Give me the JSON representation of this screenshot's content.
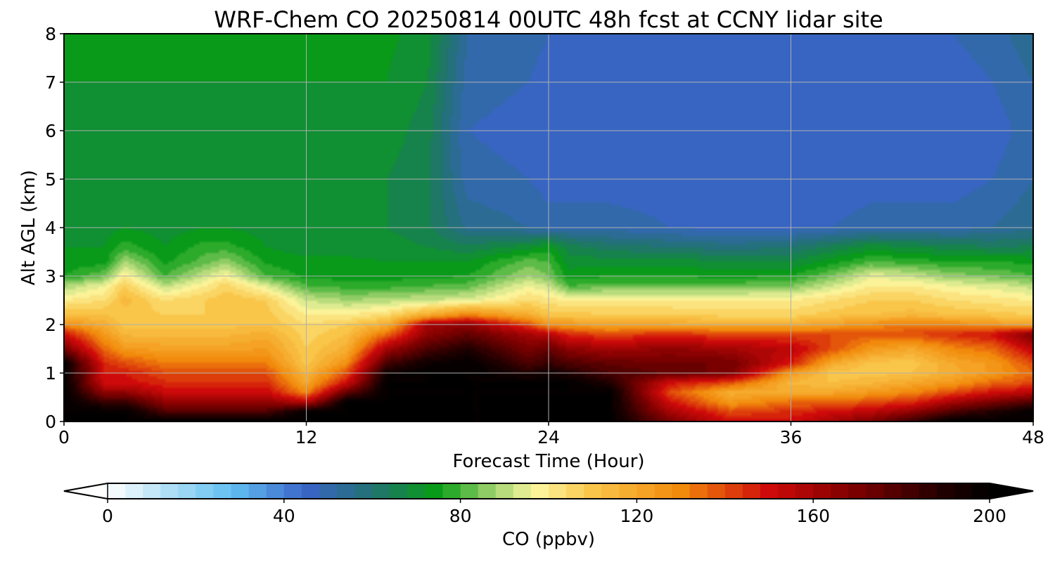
{
  "chart_data": {
    "type": "heatmap",
    "title": "WRF-Chem CO  20250814 00UTC 48h fcst at CCNY lidar site",
    "xlabel": "Forecast Time (Hour)",
    "ylabel": "Alt AGL (km)",
    "xlim": [
      0,
      48
    ],
    "ylim": [
      0,
      8
    ],
    "xticks": [
      0,
      12,
      24,
      36,
      48
    ],
    "yticks": [
      0,
      1,
      2,
      3,
      4,
      5,
      6,
      7,
      8
    ],
    "grid": true,
    "colorbar": {
      "label": "CO  (ppbv)",
      "range": [
        0,
        200
      ],
      "ticks": [
        0,
        40,
        80,
        120,
        160,
        200
      ],
      "extend": "both",
      "stops": [
        {
          "v": 0,
          "color": "#ffffff"
        },
        {
          "v": 15,
          "color": "#a8dcf5"
        },
        {
          "v": 28,
          "color": "#62c0f2"
        },
        {
          "v": 45,
          "color": "#3a64c8"
        },
        {
          "v": 60,
          "color": "#227272"
        },
        {
          "v": 75,
          "color": "#079d14"
        },
        {
          "v": 87,
          "color": "#9bd06c"
        },
        {
          "v": 97,
          "color": "#fcf7a0"
        },
        {
          "v": 110,
          "color": "#f9c64a"
        },
        {
          "v": 130,
          "color": "#f28a0c"
        },
        {
          "v": 150,
          "color": "#cf0a0a"
        },
        {
          "v": 170,
          "color": "#7a0000"
        },
        {
          "v": 190,
          "color": "#1e0000"
        },
        {
          "v": 200,
          "color": "#000000"
        }
      ]
    },
    "x": [
      0,
      2,
      3,
      5,
      7,
      8,
      10,
      12,
      14,
      16,
      18,
      20,
      23,
      24,
      25,
      27,
      30,
      33,
      36,
      38,
      40,
      42,
      44,
      46,
      48
    ],
    "y": [
      0,
      0.2,
      0.4,
      0.6,
      0.8,
      1.0,
      1.2,
      1.5,
      1.8,
      2.0,
      2.2,
      2.5,
      2.8,
      3.0,
      3.3,
      3.6,
      4.0,
      5.0,
      6.0,
      7.0,
      8.0
    ],
    "series": [
      {
        "name": "",
        "values": [
          [
            200,
            200,
            200,
            200,
            200,
            200,
            200,
            170,
            150,
            128,
            112,
            100,
            88,
            76,
            73,
            72,
            70,
            68,
            70,
            72,
            73
          ],
          [
            200,
            200,
            185,
            165,
            150,
            148,
            145,
            135,
            125,
            118,
            112,
            104,
            96,
            84,
            74,
            72,
            70,
            68,
            70,
            72,
            73
          ],
          [
            200,
            200,
            185,
            165,
            150,
            148,
            140,
            125,
            115,
            110,
            110,
            114,
            108,
            100,
            88,
            78,
            72,
            70,
            70,
            72,
            73
          ],
          [
            200,
            180,
            165,
            152,
            145,
            140,
            132,
            122,
            115,
            110,
            108,
            104,
            90,
            80,
            75,
            72,
            70,
            68,
            70,
            72,
            73
          ],
          [
            200,
            180,
            165,
            152,
            145,
            140,
            132,
            122,
            115,
            110,
            108,
            108,
            100,
            92,
            82,
            78,
            72,
            70,
            70,
            72,
            73
          ],
          [
            200,
            180,
            165,
            152,
            145,
            140,
            132,
            122,
            115,
            110,
            108,
            112,
            106,
            98,
            86,
            78,
            72,
            70,
            70,
            72,
            73
          ],
          [
            200,
            180,
            165,
            152,
            145,
            140,
            132,
            124,
            118,
            112,
            110,
            108,
            94,
            80,
            75,
            72,
            70,
            68,
            70,
            72,
            73
          ],
          [
            200,
            200,
            155,
            130,
            120,
            115,
            110,
            108,
            106,
            104,
            100,
            92,
            80,
            75,
            73,
            70,
            70,
            68,
            70,
            72,
            73
          ],
          [
            200,
            200,
            200,
            175,
            150,
            140,
            128,
            118,
            112,
            108,
            100,
            88,
            78,
            74,
            73,
            70,
            68,
            68,
            70,
            72,
            73
          ],
          [
            200,
            200,
            200,
            200,
            200,
            195,
            182,
            160,
            135,
            118,
            104,
            90,
            78,
            74,
            72,
            70,
            68,
            68,
            70,
            72,
            73
          ],
          [
            200,
            200,
            200,
            200,
            200,
            200,
            195,
            180,
            165,
            160,
            118,
            92,
            80,
            75,
            72,
            68,
            65,
            65,
            66,
            68,
            70
          ],
          [
            200,
            200,
            200,
            200,
            200,
            200,
            200,
            190,
            175,
            165,
            130,
            94,
            82,
            76,
            72,
            65,
            55,
            50,
            48,
            50,
            52
          ],
          [
            200,
            200,
            200,
            200,
            200,
            190,
            180,
            170,
            160,
            140,
            118,
            104,
            96,
            88,
            82,
            70,
            52,
            48,
            46,
            48,
            50
          ],
          [
            200,
            200,
            200,
            200,
            200,
            195,
            185,
            175,
            155,
            125,
            110,
            102,
            92,
            84,
            80,
            74,
            50,
            46,
            45,
            46,
            48
          ],
          [
            200,
            200,
            200,
            200,
            200,
            190,
            180,
            165,
            145,
            125,
            110,
            100,
            80,
            74,
            70,
            66,
            50,
            46,
            45,
            46,
            48
          ],
          [
            200,
            200,
            200,
            200,
            190,
            180,
            175,
            160,
            140,
            120,
            108,
            100,
            82,
            76,
            70,
            62,
            50,
            46,
            45,
            46,
            48
          ],
          [
            170,
            160,
            150,
            140,
            150,
            175,
            172,
            165,
            145,
            120,
            108,
            100,
            82,
            76,
            70,
            60,
            48,
            46,
            45,
            46,
            48
          ],
          [
            150,
            140,
            125,
            118,
            140,
            170,
            172,
            160,
            140,
            118,
            106,
            100,
            82,
            75,
            68,
            58,
            46,
            45,
            45,
            46,
            48
          ],
          [
            150,
            145,
            135,
            120,
            115,
            125,
            148,
            155,
            140,
            118,
            106,
            100,
            84,
            76,
            68,
            60,
            47,
            45,
            45,
            46,
            48
          ],
          [
            160,
            150,
            135,
            120,
            112,
            110,
            120,
            140,
            140,
            122,
            110,
            104,
            92,
            84,
            74,
            65,
            48,
            45,
            45,
            46,
            48
          ],
          [
            170,
            155,
            140,
            125,
            115,
            110,
            110,
            125,
            138,
            128,
            112,
            108,
            100,
            95,
            80,
            70,
            50,
            46,
            45,
            46,
            48
          ],
          [
            185,
            165,
            145,
            130,
            120,
            112,
            110,
            120,
            140,
            132,
            114,
            108,
            100,
            92,
            78,
            68,
            50,
            46,
            45,
            46,
            48
          ],
          [
            200,
            180,
            160,
            140,
            125,
            118,
            120,
            130,
            145,
            130,
            112,
            104,
            96,
            86,
            76,
            66,
            50,
            46,
            45,
            46,
            48
          ],
          [
            200,
            190,
            170,
            150,
            135,
            125,
            125,
            135,
            150,
            125,
            110,
            102,
            94,
            84,
            76,
            64,
            52,
            48,
            46,
            48,
            50
          ],
          [
            200,
            200,
            180,
            155,
            140,
            135,
            140,
            155,
            170,
            120,
            108,
            100,
            90,
            80,
            75,
            65,
            55,
            52,
            50,
            52,
            55
          ]
        ]
      }
    ]
  }
}
